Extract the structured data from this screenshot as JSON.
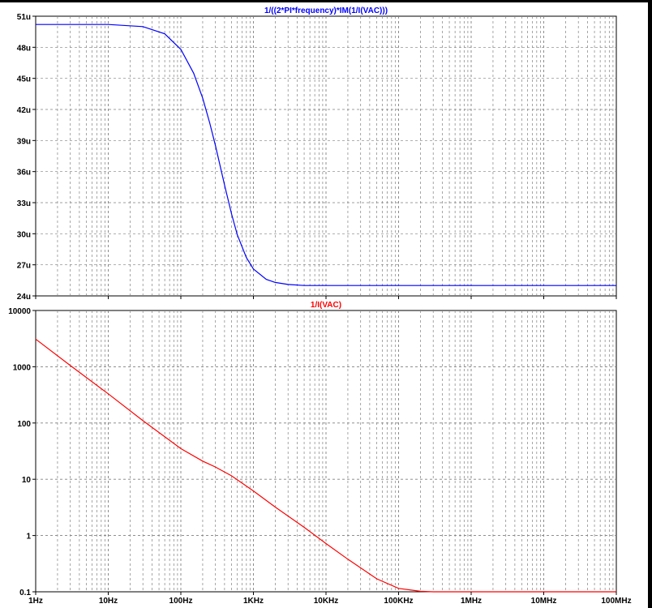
{
  "panels": [
    {
      "id": "top",
      "trace_label": "1/((2*PI*frequency)*IM(1/I(VAC)))",
      "label_color": "#0000ff",
      "trace_color": "#0000ff",
      "y_ticks": [
        "51u",
        "48u",
        "45u",
        "42u",
        "39u",
        "36u",
        "33u",
        "30u",
        "27u",
        "24u"
      ]
    },
    {
      "id": "bottom",
      "trace_label": "1/I(VAC)",
      "label_color": "#ff0000",
      "trace_color": "#ff0000",
      "y_ticks": [
        "10000",
        "1000",
        "100",
        "10",
        "1",
        "0.1"
      ]
    }
  ],
  "x_ticks": [
    "1Hz",
    "10Hz",
    "100Hz",
    "1KHz",
    "10KHz",
    "100KHz",
    "1MHz",
    "10MHz",
    "100MHz"
  ],
  "chart_data": [
    {
      "type": "line",
      "title": "1/((2*PI*frequency)*IM(1/I(VAC)))",
      "x_scale": "log",
      "xlim": [
        1,
        100000000
      ],
      "ylim": [
        2.4e-05,
        5.1e-05
      ],
      "grid": true,
      "series": [
        {
          "name": "1/((2*PI*frequency)*IM(1/I(VAC)))",
          "color": "#0000ff",
          "x": [
            1,
            10,
            30,
            60,
            100,
            150,
            200,
            250,
            300,
            400,
            500,
            600,
            800,
            1000,
            1500,
            2000,
            3000,
            5000,
            10000,
            100000,
            1000000,
            10000000,
            100000000
          ],
          "y": [
            5.02e-05,
            5.02e-05,
            5e-05,
            4.93e-05,
            4.78e-05,
            4.55e-05,
            4.31e-05,
            4.07e-05,
            3.85e-05,
            3.47e-05,
            3.19e-05,
            2.99e-05,
            2.77e-05,
            2.66e-05,
            2.56e-05,
            2.53e-05,
            2.51e-05,
            2.5e-05,
            2.5e-05,
            2.5e-05,
            2.5e-05,
            2.5e-05,
            2.5e-05
          ]
        }
      ]
    },
    {
      "type": "line",
      "title": "1/I(VAC)",
      "x_scale": "log",
      "y_scale": "log",
      "xlim": [
        1,
        100000000
      ],
      "ylim": [
        0.1,
        10000
      ],
      "grid": true,
      "series": [
        {
          "name": "1/I(VAC)",
          "color": "#ff0000",
          "x": [
            1,
            3,
            10,
            30,
            100,
            200,
            300,
            500,
            1000,
            2000,
            5000,
            10000,
            20000,
            50000,
            100000,
            200000,
            300000,
            1000000,
            10000000,
            100000000
          ],
          "y": [
            3100,
            1050,
            330,
            110,
            35,
            21,
            16.5,
            11.5,
            6.2,
            3.2,
            1.4,
            0.72,
            0.38,
            0.17,
            0.115,
            0.102,
            0.1,
            0.1,
            0.1,
            0.1
          ]
        }
      ]
    }
  ]
}
